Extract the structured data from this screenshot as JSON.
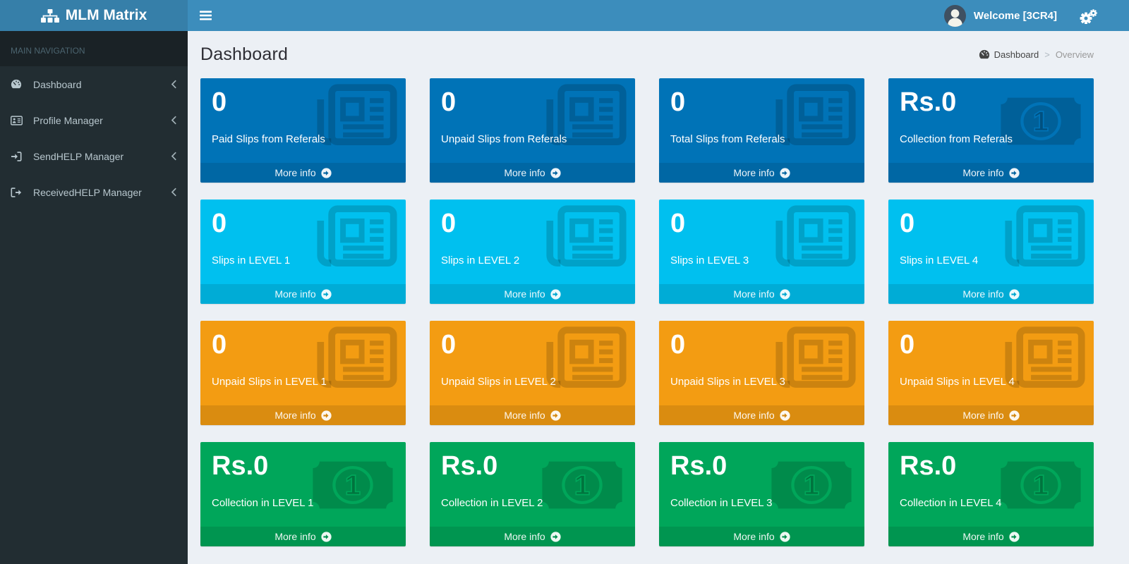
{
  "brand": {
    "name": "MLM Matrix"
  },
  "header": {
    "welcome": "Welcome [3CR4]"
  },
  "sidebar": {
    "section_label": "MAIN NAVIGATION",
    "items": [
      {
        "label": "Dashboard",
        "icon": "dashboard-icon"
      },
      {
        "label": "Profile Manager",
        "icon": "id-card-icon"
      },
      {
        "label": "SendHELP Manager",
        "icon": "sign-in-icon"
      },
      {
        "label": "ReceivedHELP Manager",
        "icon": "sign-out-icon"
      }
    ]
  },
  "page": {
    "title": "Dashboard",
    "breadcrumb": {
      "home": "Dashboard",
      "separator": ">",
      "current": "Overview"
    }
  },
  "labels": {
    "more_info": "More info"
  },
  "colors": {
    "blue": "#0073b7",
    "aqua": "#00c0ef",
    "yellow": "#f39c12",
    "green": "#00a65a",
    "navbar": "#3c8dbc",
    "logo_bg": "#367fa9",
    "sidebar_bg": "#222d32",
    "content_bg": "#ecf0f5"
  },
  "boxes": [
    {
      "value": "0",
      "label": "Paid Slips from Referals",
      "color": "blue",
      "icon": "newspaper-icon"
    },
    {
      "value": "0",
      "label": "Unpaid Slips from Referals",
      "color": "blue",
      "icon": "newspaper-icon"
    },
    {
      "value": "0",
      "label": "Total Slips from Referals",
      "color": "blue",
      "icon": "newspaper-icon"
    },
    {
      "value": "Rs.0",
      "label": "Collection from Referals",
      "color": "blue",
      "icon": "money-icon"
    },
    {
      "value": "0",
      "label": "Slips in LEVEL 1",
      "color": "aqua",
      "icon": "newspaper-icon"
    },
    {
      "value": "0",
      "label": "Slips in LEVEL 2",
      "color": "aqua",
      "icon": "newspaper-icon"
    },
    {
      "value": "0",
      "label": "Slips in LEVEL 3",
      "color": "aqua",
      "icon": "newspaper-icon"
    },
    {
      "value": "0",
      "label": "Slips in LEVEL 4",
      "color": "aqua",
      "icon": "newspaper-icon"
    },
    {
      "value": "0",
      "label": "Unpaid Slips in LEVEL 1",
      "color": "yellow",
      "icon": "newspaper-icon"
    },
    {
      "value": "0",
      "label": "Unpaid Slips in LEVEL 2",
      "color": "yellow",
      "icon": "newspaper-icon"
    },
    {
      "value": "0",
      "label": "Unpaid Slips in LEVEL 3",
      "color": "yellow",
      "icon": "newspaper-icon"
    },
    {
      "value": "0",
      "label": "Unpaid Slips in LEVEL 4",
      "color": "yellow",
      "icon": "newspaper-icon"
    },
    {
      "value": "Rs.0",
      "label": "Collection in LEVEL 1",
      "color": "green",
      "icon": "money-icon"
    },
    {
      "value": "Rs.0",
      "label": "Collection in LEVEL 2",
      "color": "green",
      "icon": "money-icon"
    },
    {
      "value": "Rs.0",
      "label": "Collection in LEVEL 3",
      "color": "green",
      "icon": "money-icon"
    },
    {
      "value": "Rs.0",
      "label": "Collection in LEVEL 4",
      "color": "green",
      "icon": "money-icon"
    }
  ]
}
